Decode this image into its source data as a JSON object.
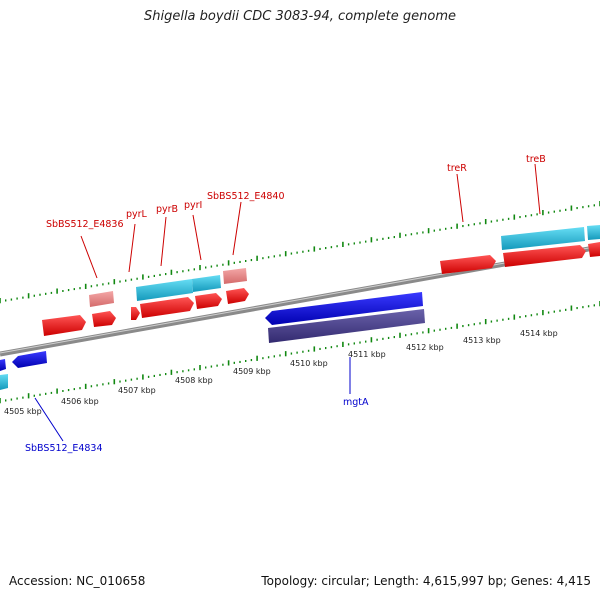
{
  "title": "Shigella boydii CDC 3083-94, complete genome",
  "footer": {
    "accession": "Accession: NC_010658",
    "summary": "Topology: circular; Length: 4,615,997 bp; Genes: 4,415"
  },
  "kbp_labels": [
    "4505 kbp",
    "4506 kbp",
    "4507 kbp",
    "4508 kbp",
    "4509 kbp",
    "4510 kbp",
    "4511 kbp",
    "4512 kbp",
    "4513 kbp",
    "4514 kbp"
  ],
  "gene_labels": {
    "SbBS512_E4836": "SbBS512_E4836",
    "pyrL": "pyrL",
    "pyrB": "pyrB",
    "pyrI": "pyrI",
    "SbBS512_E4840": "SbBS512_E4840",
    "treR": "treR",
    "treB": "treB",
    "mgtA": "mgtA",
    "SbBS512_E4834": "SbBS512_E4834"
  },
  "colors": {
    "forward_gene": "#ee1111",
    "forward_light": "#ee8888",
    "reverse_gene": "#1111dd",
    "cyan": "#22bbdd",
    "navy": "#443b88",
    "backbone": "#888888",
    "tick": "#118811",
    "label_red": "#cc0000",
    "label_blue": "#0000cc"
  }
}
